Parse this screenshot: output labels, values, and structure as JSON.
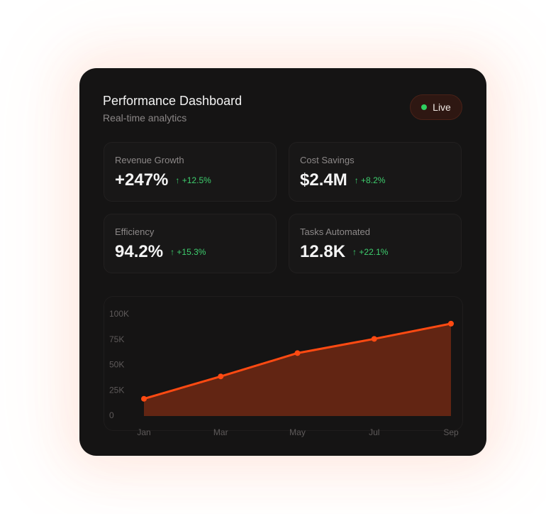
{
  "header": {
    "title": "Performance Dashboard",
    "subtitle": "Real-time analytics",
    "badge": "Live"
  },
  "metrics": [
    {
      "label": "Revenue Growth",
      "value": "+247%",
      "change": "+12.5%"
    },
    {
      "label": "Cost Savings",
      "value": "$2.4M",
      "change": "+8.2%"
    },
    {
      "label": "Efficiency",
      "value": "94.2%",
      "change": "+15.3%"
    },
    {
      "label": "Tasks Automated",
      "value": "12.8K",
      "change": "+22.1%"
    }
  ],
  "chart_data": {
    "type": "area",
    "categories": [
      "Jan",
      "Mar",
      "May",
      "Jul",
      "Sep"
    ],
    "series": [
      {
        "color": "#ff4a12",
        "values": [
          17000,
          39000,
          62000,
          76000,
          91000
        ]
      }
    ],
    "ylim": [
      0,
      100000
    ],
    "yticks": [
      0,
      {
        "value": 25000,
        "label": "25K"
      },
      {
        "value": 50000,
        "label": "50K"
      },
      {
        "value": 75000,
        "label": "75K"
      },
      {
        "value": 100000,
        "label": "100K"
      }
    ],
    "grid": false
  }
}
